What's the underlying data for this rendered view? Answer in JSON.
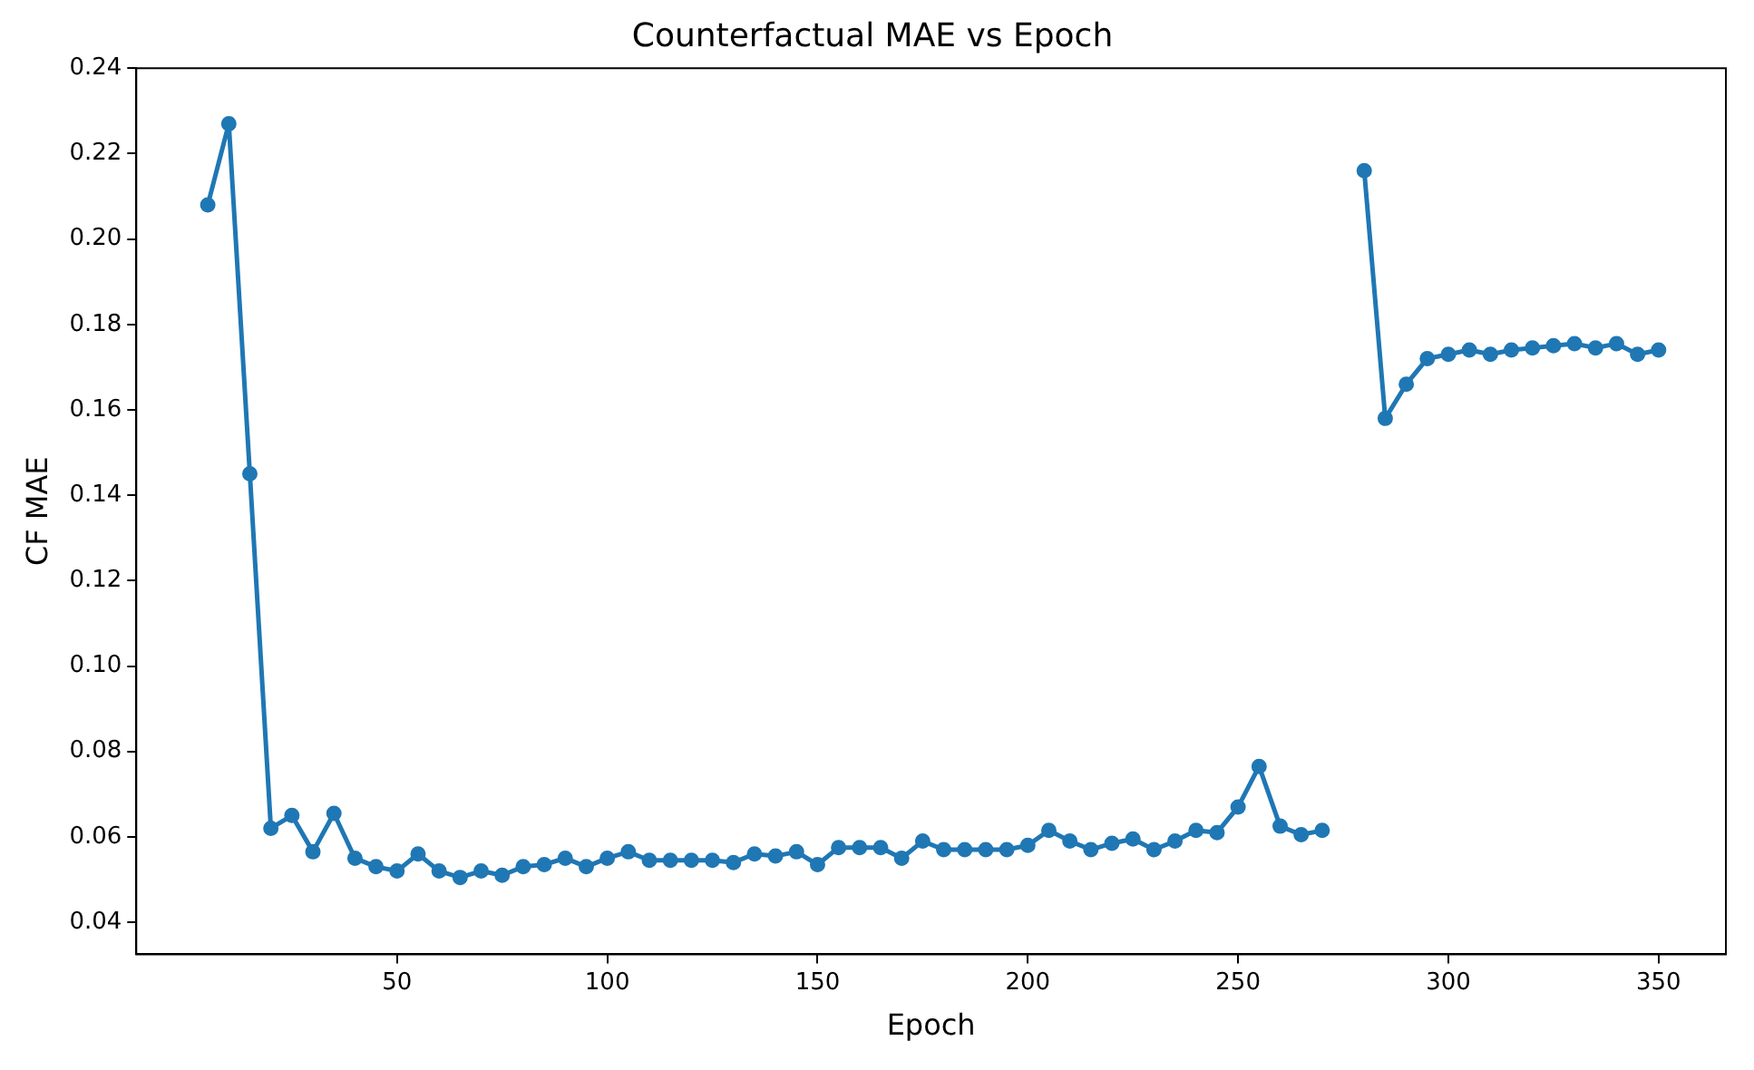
{
  "chart_data": {
    "type": "line",
    "title": "Counterfactual MAE vs Epoch",
    "xlabel": "Epoch",
    "ylabel": "CF MAE",
    "x": [
      5,
      10,
      15,
      20,
      25,
      30,
      35,
      40,
      45,
      50,
      55,
      60,
      65,
      70,
      75,
      80,
      85,
      90,
      95,
      100,
      105,
      110,
      115,
      120,
      125,
      130,
      135,
      140,
      145,
      150,
      155,
      160,
      165,
      170,
      175,
      180,
      185,
      190,
      195,
      200,
      205,
      210,
      215,
      220,
      225,
      230,
      235,
      240,
      245,
      250,
      255,
      260,
      265,
      270,
      275,
      280,
      285,
      290,
      295,
      300,
      305,
      310,
      315,
      320,
      325,
      330,
      335,
      340,
      345,
      350
    ],
    "series": [
      {
        "color": "#1f77b4",
        "values": [
          0.208,
          0.227,
          0.145,
          0.062,
          0.065,
          0.0565,
          0.0655,
          0.055,
          0.053,
          0.052,
          0.056,
          0.052,
          0.0505,
          0.052,
          0.051,
          0.053,
          0.0535,
          0.055,
          0.053,
          0.055,
          0.0565,
          0.0545,
          0.0545,
          0.0545,
          0.0545,
          0.054,
          0.056,
          0.0555,
          0.0565,
          0.0535,
          0.0575,
          0.0575,
          0.0575,
          0.055,
          0.059,
          0.057,
          0.057,
          0.057,
          0.057,
          0.058,
          0.0615,
          0.059,
          0.057,
          0.0585,
          0.0595,
          0.057,
          0.059,
          0.0615,
          0.061,
          0.067,
          0.0765,
          0.0625,
          0.0605,
          0.0615,
          null,
          0.216,
          0.158,
          0.166,
          0.172,
          0.173,
          0.174,
          0.173,
          0.174,
          0.1745,
          0.175,
          0.1755,
          0.1745,
          0.1755,
          0.173,
          0.174
        ]
      }
    ],
    "xlim": [
      -12,
      366
    ],
    "ylim": [
      0.0325,
      0.24
    ],
    "xticks": [
      50,
      100,
      150,
      200,
      250,
      300,
      350
    ],
    "yticks": [
      {
        "value": 0.04,
        "label": "0.04"
      },
      {
        "value": 0.06,
        "label": "0.06"
      },
      {
        "value": 0.08,
        "label": "0.08"
      },
      {
        "value": 0.1,
        "label": "0.10"
      },
      {
        "value": 0.12,
        "label": "0.12"
      },
      {
        "value": 0.14,
        "label": "0.14"
      },
      {
        "value": 0.16,
        "label": "0.16"
      },
      {
        "value": 0.18,
        "label": "0.18"
      },
      {
        "value": 0.2,
        "label": "0.20"
      },
      {
        "value": 0.22,
        "label": "0.22"
      },
      {
        "value": 0.24,
        "label": "0.24"
      }
    ],
    "grid": false,
    "legend": false,
    "marker": "circle",
    "line_style": "solid"
  }
}
